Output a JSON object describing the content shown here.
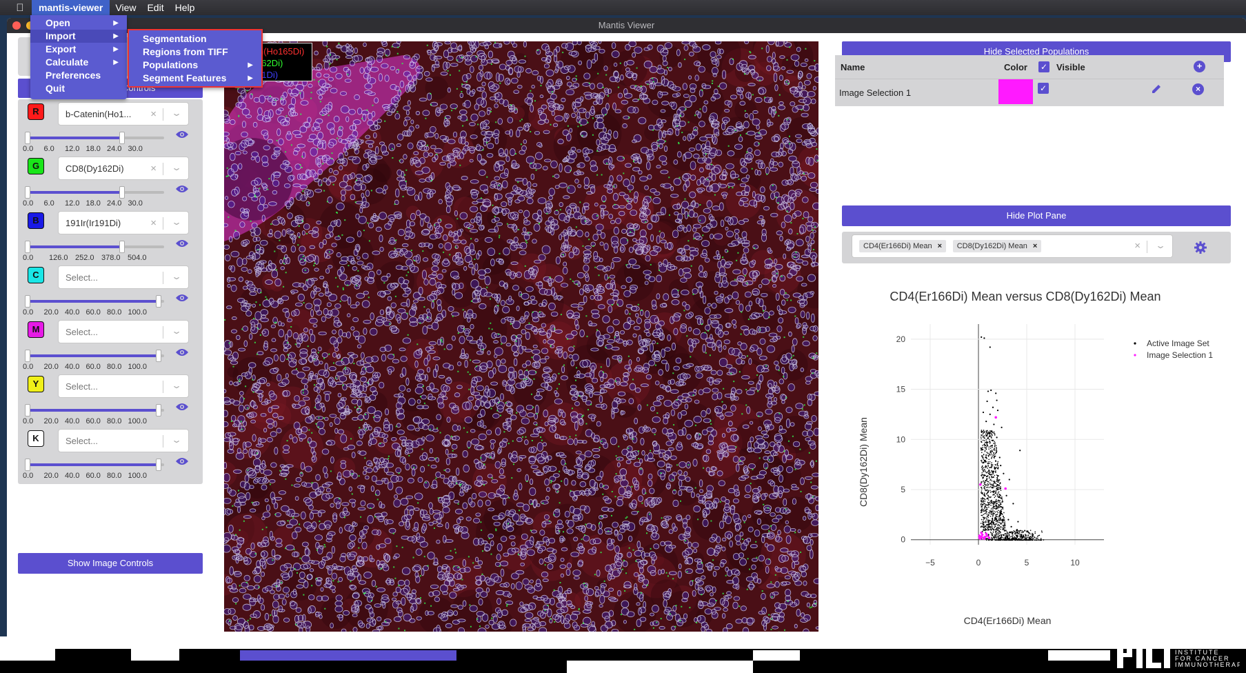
{
  "menubar": {
    "apple_icon": "apple-icon",
    "app_name": "mantis-viewer",
    "items": [
      "View",
      "Edit",
      "Help"
    ]
  },
  "window": {
    "title": "Mantis Viewer"
  },
  "app_menu": {
    "items": [
      {
        "label": "Open",
        "submenu": true
      },
      {
        "label": "Import",
        "submenu": true,
        "selected": true
      },
      {
        "label": "Export",
        "submenu": true
      },
      {
        "label": "Calculate",
        "submenu": true
      },
      {
        "label": "Preferences",
        "submenu": false
      },
      {
        "label": "Quit",
        "submenu": false
      }
    ]
  },
  "import_submenu": {
    "items": [
      {
        "label": "Segmentation",
        "submenu": false
      },
      {
        "label": "Regions from TIFF",
        "submenu": false
      },
      {
        "label": "Populations",
        "submenu": true
      },
      {
        "label": "Segment Features",
        "submenu": true
      }
    ]
  },
  "left_panel": {
    "hide_channel_controls": "Hide Channel Controls",
    "show_image_controls": "Show Image Controls",
    "channels": [
      {
        "letter": "R",
        "color": "#ff1a1a",
        "marker": "b-Catenin(Ho1...",
        "placeholder": false,
        "ticks": [
          "0.0",
          "6.0",
          "12.0",
          "18.0",
          "24.0",
          "30.0"
        ],
        "low": 0.0,
        "high": 0.72
      },
      {
        "letter": "G",
        "color": "#19e619",
        "marker": "CD8(Dy162Di)",
        "placeholder": false,
        "ticks": [
          "0.0",
          "6.0",
          "12.0",
          "18.0",
          "24.0",
          "30.0"
        ],
        "low": 0.0,
        "high": 0.72
      },
      {
        "letter": "B",
        "color": "#1a1ae6",
        "marker": "191Ir(Ir191Di)",
        "placeholder": false,
        "ticks": [
          "0.0",
          "126.0",
          "252.0",
          "378.0",
          "504.0"
        ],
        "low": 0.0,
        "high": 0.72
      },
      {
        "letter": "C",
        "color": "#1ae6e6",
        "marker": "Select...",
        "placeholder": true,
        "ticks": [
          "0.0",
          "20.0",
          "40.0",
          "60.0",
          "80.0",
          "100.0"
        ],
        "low": 0.0,
        "high": 1.0
      },
      {
        "letter": "M",
        "color": "#e61ae6",
        "marker": "Select...",
        "placeholder": true,
        "ticks": [
          "0.0",
          "20.0",
          "40.0",
          "60.0",
          "80.0",
          "100.0"
        ],
        "low": 0.0,
        "high": 1.0
      },
      {
        "letter": "Y",
        "color": "#f0f019",
        "marker": "Select...",
        "placeholder": true,
        "ticks": [
          "0.0",
          "20.0",
          "40.0",
          "60.0",
          "80.0",
          "100.0"
        ],
        "low": 0.0,
        "high": 1.0
      },
      {
        "letter": "K",
        "color": "#ffffff",
        "marker": "Select...",
        "placeholder": true,
        "ticks": [
          "0.0",
          "20.0",
          "40.0",
          "60.0",
          "80.0",
          "100.0"
        ],
        "low": 0.0,
        "high": 1.0
      }
    ]
  },
  "image_legend": [
    "in(Ho165Di)",
    "162Di)",
    "91Di)"
  ],
  "populations": {
    "hide_button": "Hide Selected Populations",
    "col_name": "Name",
    "col_color": "Color",
    "col_visible": "Visible",
    "rows": [
      {
        "name": "Image Selection 1",
        "color": "#ff1aff",
        "visible": true
      }
    ]
  },
  "plot": {
    "hide_button": "Hide Plot Pane",
    "selected_features": [
      "CD4(Er166Di) Mean",
      "CD8(Dy162Di) Mean"
    ]
  },
  "chart_data": {
    "type": "scatter",
    "title": "CD4(Er166Di) Mean versus CD8(Dy162Di) Mean",
    "xlabel": "CD4(Er166Di) Mean",
    "ylabel": "CD8(Dy162Di) Mean",
    "xlim": [
      -7,
      13
    ],
    "ylim": [
      -0.5,
      21.5
    ],
    "xticks": [
      "−5",
      "0",
      "5",
      "10"
    ],
    "xtick_values": [
      -5,
      0,
      5,
      10
    ],
    "yticks": [
      "0",
      "5",
      "10",
      "15",
      "20"
    ],
    "ytick_values": [
      0,
      5,
      10,
      15,
      20
    ],
    "legend_position": "top-right",
    "series": [
      {
        "name": "Active Image Set",
        "color": "#000000",
        "points": [
          [
            0.3,
            20.2
          ],
          [
            0.6,
            20.1
          ],
          [
            1.2,
            19.2
          ],
          [
            1.0,
            14.8
          ],
          [
            1.3,
            14.9
          ],
          [
            1.8,
            14.6
          ],
          [
            0.9,
            13.8
          ],
          [
            1.5,
            13.2
          ],
          [
            1.2,
            12.5
          ],
          [
            2.0,
            12.9
          ],
          [
            0.8,
            11.8
          ],
          [
            1.6,
            11.5
          ],
          [
            2.4,
            11.2
          ],
          [
            1.1,
            10.6
          ],
          [
            1.9,
            10.2
          ],
          [
            4.3,
            8.9
          ],
          [
            0.7,
            9.4
          ],
          [
            1.4,
            8.8
          ],
          [
            2.2,
            8.2
          ],
          [
            1.0,
            7.6
          ],
          [
            1.7,
            7.1
          ],
          [
            2.6,
            6.6
          ],
          [
            3.2,
            6.0
          ],
          [
            0.5,
            6.2
          ],
          [
            1.3,
            5.5
          ],
          [
            2.0,
            5.0
          ],
          [
            2.9,
            4.4
          ],
          [
            3.6,
            3.6
          ],
          [
            0.9,
            4.1
          ],
          [
            1.6,
            3.3
          ],
          [
            2.4,
            2.6
          ],
          [
            3.1,
            2.0
          ],
          [
            4.1,
            1.8
          ],
          [
            0.6,
            2.2
          ],
          [
            1.2,
            1.6
          ],
          [
            1.9,
            1.1
          ],
          [
            2.7,
            0.9
          ],
          [
            3.5,
            0.6
          ],
          [
            4.4,
            0.5
          ],
          [
            5.2,
            0.7
          ],
          [
            0.4,
            0.8
          ],
          [
            1.0,
            0.4
          ],
          [
            1.6,
            0.3
          ],
          [
            2.3,
            0.2
          ],
          [
            3.0,
            0.3
          ],
          [
            3.8,
            0.2
          ],
          [
            4.6,
            0.2
          ],
          [
            5.6,
            0.4
          ],
          [
            0.2,
            0.3
          ],
          [
            0.8,
            0.1
          ],
          [
            1.4,
            0.1
          ],
          [
            2.1,
            0.1
          ],
          [
            2.8,
            0.1
          ],
          [
            0.3,
            0.1
          ],
          [
            1.8,
            2.1
          ],
          [
            2.5,
            3.8
          ],
          [
            1.1,
            6.9
          ],
          [
            0.8,
            8.2
          ],
          [
            1.5,
            9.9
          ],
          [
            2.3,
            7.4
          ],
          [
            3.4,
            1.3
          ],
          [
            4.0,
            1.0
          ],
          [
            4.8,
            0.9
          ],
          [
            0.5,
            12.7
          ],
          [
            1.9,
            13.9
          ]
        ]
      },
      {
        "name": "Image Selection 1",
        "color": "#ff1aff",
        "points": [
          [
            1.8,
            12.2
          ],
          [
            2.8,
            5.1
          ],
          [
            0.2,
            5.5
          ],
          [
            0.1,
            0.4
          ],
          [
            0.3,
            0.3
          ],
          [
            0.5,
            0.2
          ],
          [
            0.7,
            0.3
          ],
          [
            0.4,
            0.5
          ],
          [
            0.6,
            0.1
          ],
          [
            0.2,
            0.1
          ],
          [
            0.9,
            0.4
          ],
          [
            1.1,
            0.2
          ],
          [
            0.3,
            0.7
          ],
          [
            0.8,
            0.6
          ],
          [
            0.1,
            0.2
          ]
        ]
      }
    ]
  }
}
